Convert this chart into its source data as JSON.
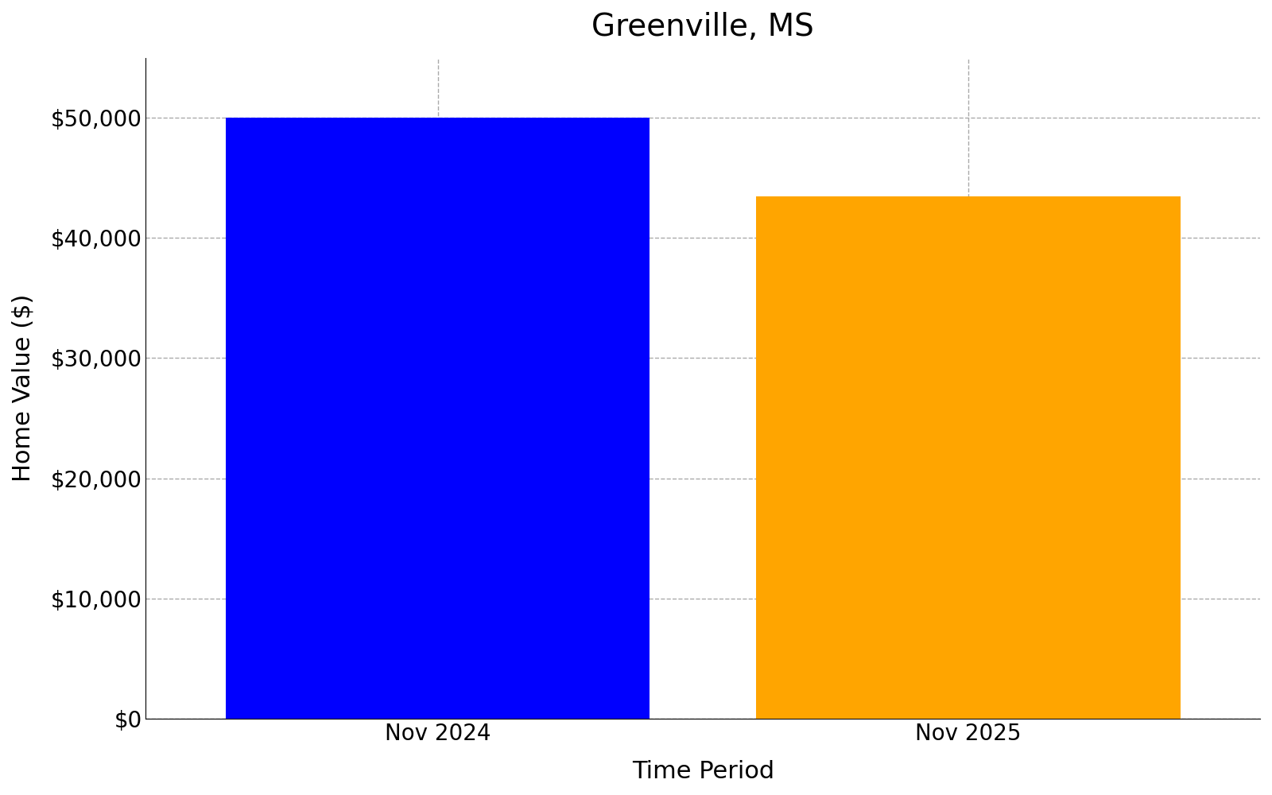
{
  "title": "Greenville, MS",
  "categories": [
    "Nov 2024",
    "Nov 2025"
  ],
  "values": [
    50000,
    43500
  ],
  "bar_colors": [
    "#0000FF",
    "#FFA500"
  ],
  "xlabel": "Time Period",
  "ylabel": "Home Value ($)",
  "ylim": [
    0,
    55000
  ],
  "yticks": [
    0,
    10000,
    20000,
    30000,
    40000,
    50000
  ],
  "title_fontsize": 28,
  "axis_label_fontsize": 22,
  "tick_fontsize": 20,
  "background_color": "#ffffff",
  "grid_color": "#aaaaaa",
  "bar_width": 0.8,
  "figsize": [
    16,
    10
  ],
  "xlim": [
    -0.55,
    1.55
  ]
}
